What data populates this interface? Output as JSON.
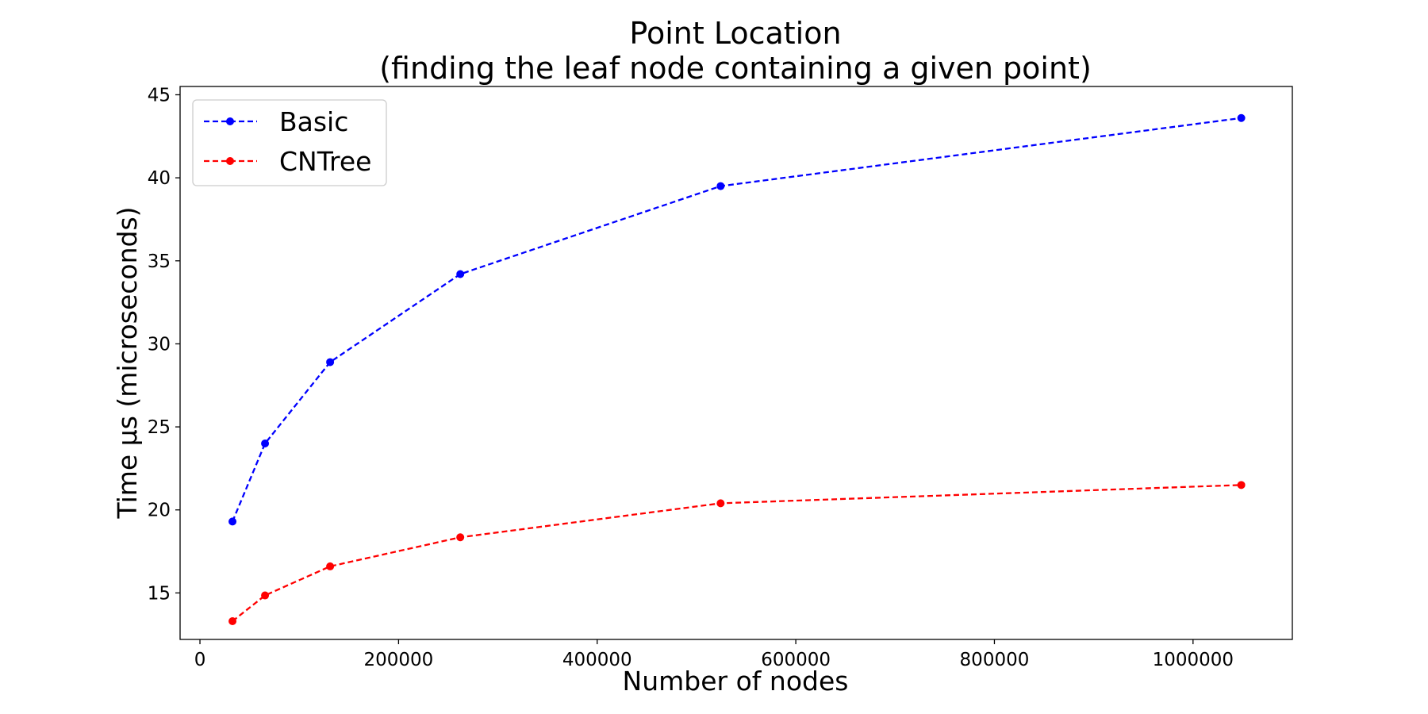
{
  "chart_data": {
    "type": "line",
    "title": "Point Location",
    "subtitle": "(finding the leaf node containing a given point)",
    "xlabel": "Number of nodes",
    "ylabel": "Time µs (microseconds)",
    "xlim": [
      -20000,
      1100000
    ],
    "ylim": [
      12.2,
      45.5
    ],
    "xticks": [
      0,
      200000,
      400000,
      600000,
      800000,
      1000000
    ],
    "xtick_labels": [
      "0",
      "200000",
      "400000",
      "600000",
      "800000",
      "1000000"
    ],
    "yticks": [
      15,
      20,
      25,
      30,
      35,
      40,
      45
    ],
    "ytick_labels": [
      "15",
      "20",
      "25",
      "30",
      "35",
      "40",
      "45"
    ],
    "grid": false,
    "legend_position": "top-left",
    "x": [
      32768,
      65536,
      131072,
      262144,
      524288,
      1048576
    ],
    "series": [
      {
        "name": "Basic",
        "color": "#0000ff",
        "line_style": "dashed",
        "marker": "circle",
        "values": [
          19.3,
          24.0,
          28.9,
          34.2,
          39.5,
          43.6
        ]
      },
      {
        "name": "CNTree",
        "color": "#ff0000",
        "line_style": "dashed",
        "marker": "circle",
        "values": [
          13.3,
          14.85,
          16.6,
          18.35,
          20.4,
          21.5
        ]
      }
    ]
  }
}
